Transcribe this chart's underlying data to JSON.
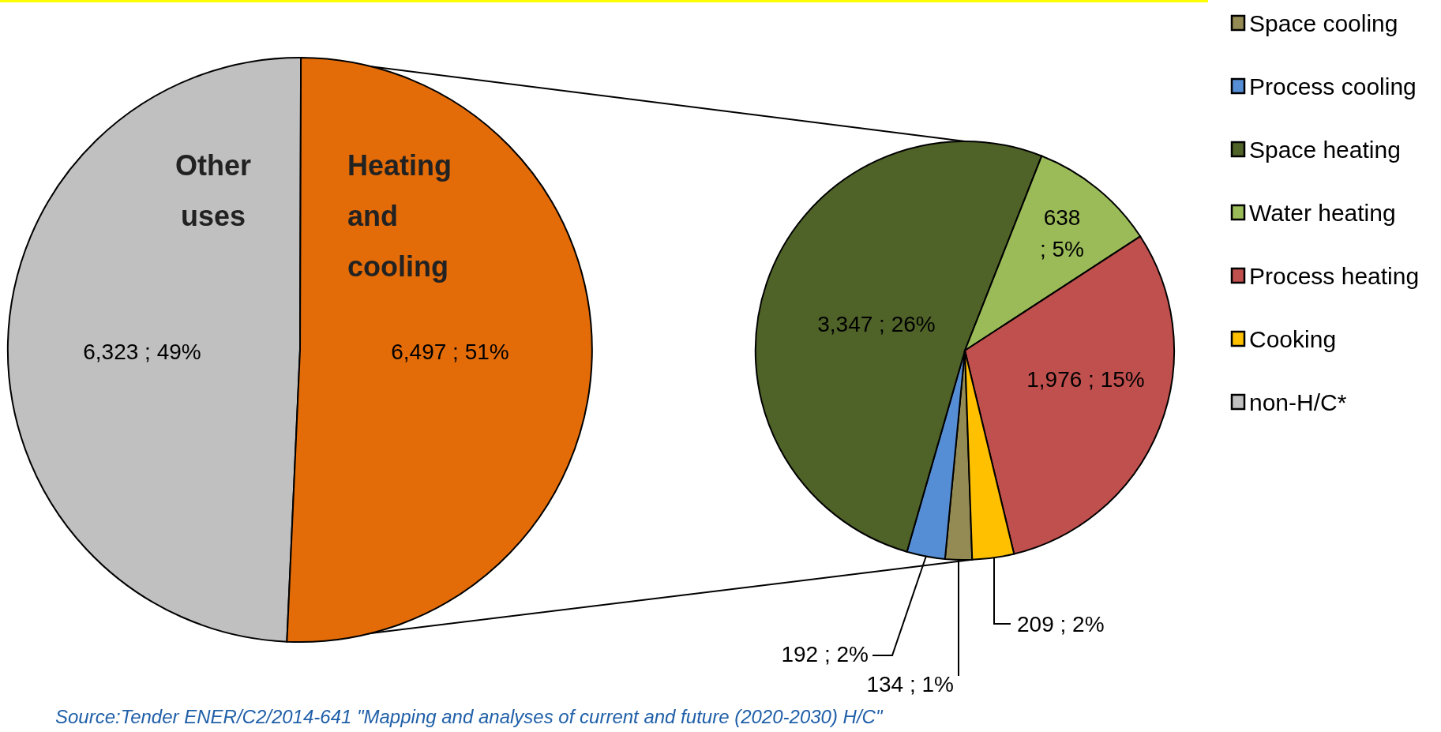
{
  "chart_data": [
    {
      "type": "pie",
      "categories": [
        "Other uses",
        "Heating and cooling"
      ],
      "values": [
        6323,
        6497
      ],
      "colors": [
        "#c0c0c0",
        "#e36c09"
      ],
      "value_labels": [
        "6,323 ; 49%",
        "6,497 ; 51%"
      ],
      "annotations": [
        "Source:Tender ENER/C2/2014-641 \"Mapping and analyses of current and future (2020-2030) H/C\""
      ]
    },
    {
      "type": "pie",
      "categories": [
        "Space cooling",
        "Process cooling",
        "Space heating",
        "Water heating",
        "Process heating",
        "Cooking",
        "non-H/C*"
      ],
      "values": [
        134,
        192,
        3347,
        638,
        1976,
        209,
        null
      ],
      "colors": [
        "#948a54",
        "#558ed5",
        "#4f6228",
        "#9bbb59",
        "#c0504d",
        "#ffc000",
        "#c0c0c0"
      ],
      "value_labels": [
        "134 ; 1%",
        "192 ; 2%",
        "3,347 ; 26%",
        "638 ; 5%",
        "1,976 ; 15%",
        "209 ; 2%",
        null
      ],
      "legend": "right"
    }
  ]
}
